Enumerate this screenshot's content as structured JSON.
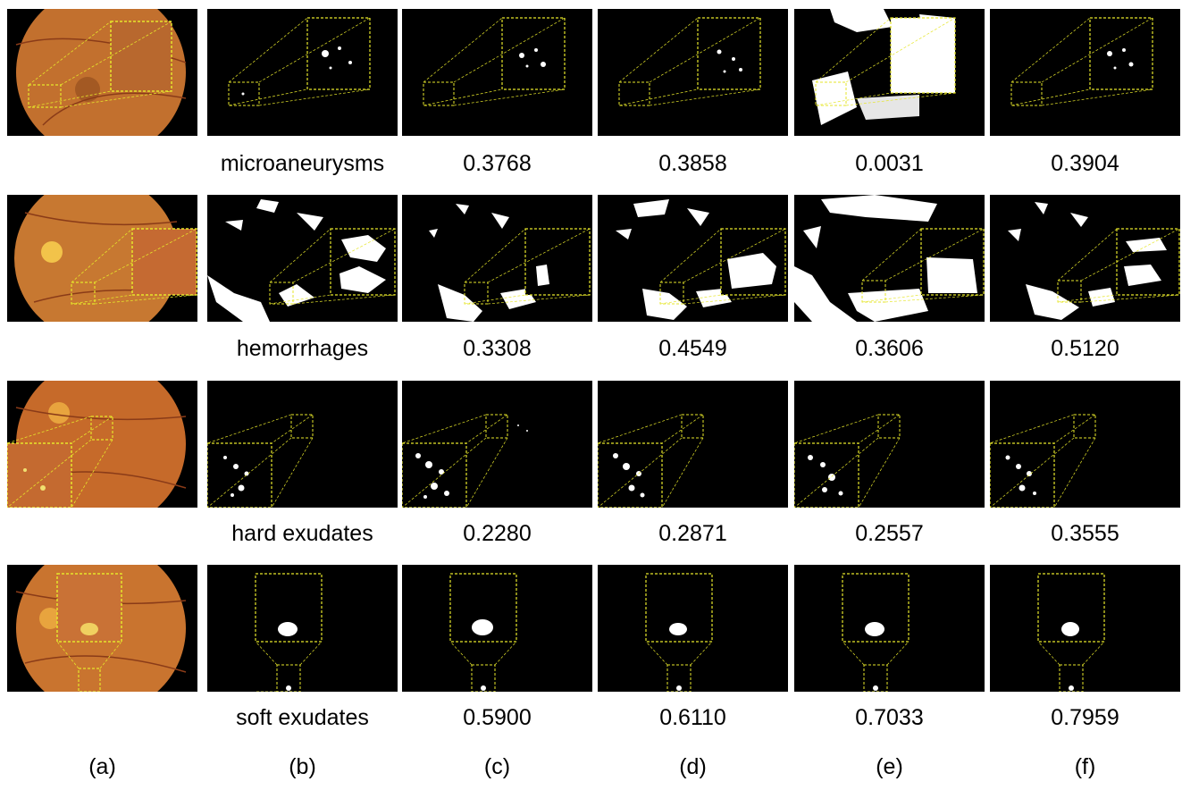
{
  "rows": [
    {
      "lesion": "microaneurysms",
      "scores": [
        "0.3768",
        "0.3858",
        "0.0031",
        "0.3904"
      ]
    },
    {
      "lesion": "hemorrhages",
      "scores": [
        "0.3308",
        "0.4549",
        "0.3606",
        "0.5120"
      ]
    },
    {
      "lesion": "hard exudates",
      "scores": [
        "0.2280",
        "0.2871",
        "0.2557",
        "0.3555"
      ]
    },
    {
      "lesion": "soft exudates",
      "scores": [
        "0.5900",
        "0.6110",
        "0.7033",
        "0.7959"
      ]
    }
  ],
  "column_labels": [
    "(a)",
    "(b)",
    "(c)",
    "(d)",
    "(e)",
    "(f)"
  ],
  "colors": {
    "fundus": "#c4702c",
    "mask_background": "#000000",
    "lesion": "#ffffff",
    "zoom_box": "#e6e62a",
    "page": "#ffffff"
  }
}
